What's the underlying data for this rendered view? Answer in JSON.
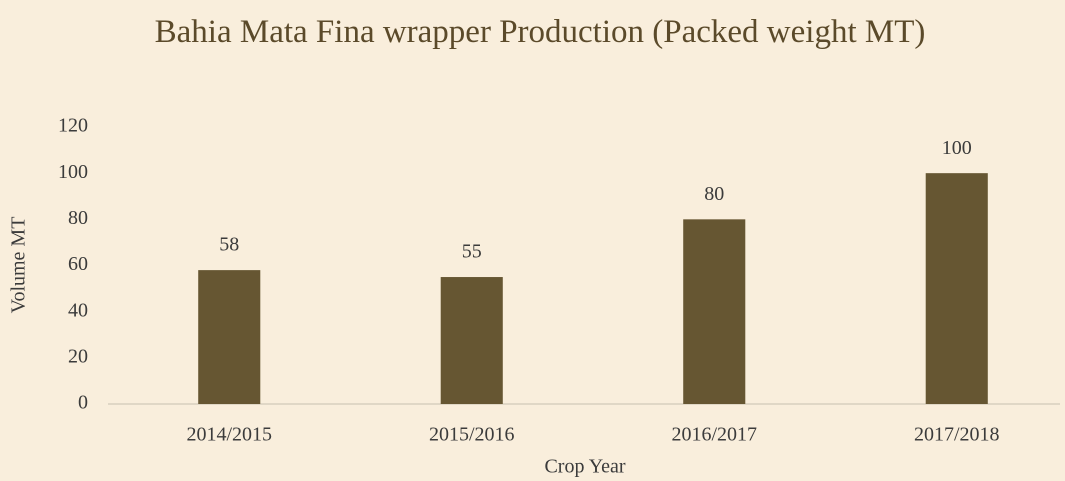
{
  "chart_data": {
    "type": "bar",
    "title": "Bahia Mata Fina wrapper Production (Packed weight MT)",
    "x_label": "Crop Year",
    "y_label": "Volume MT",
    "categories": [
      "2014/2015",
      "2015/2016",
      "2016/2017",
      "2017/2018"
    ],
    "values": [
      58,
      55,
      80,
      100
    ],
    "color": "#665632",
    "ylim": [
      0,
      120
    ],
    "yticks": [
      0,
      20,
      40,
      60,
      80,
      100,
      120
    ],
    "grid": false
  }
}
